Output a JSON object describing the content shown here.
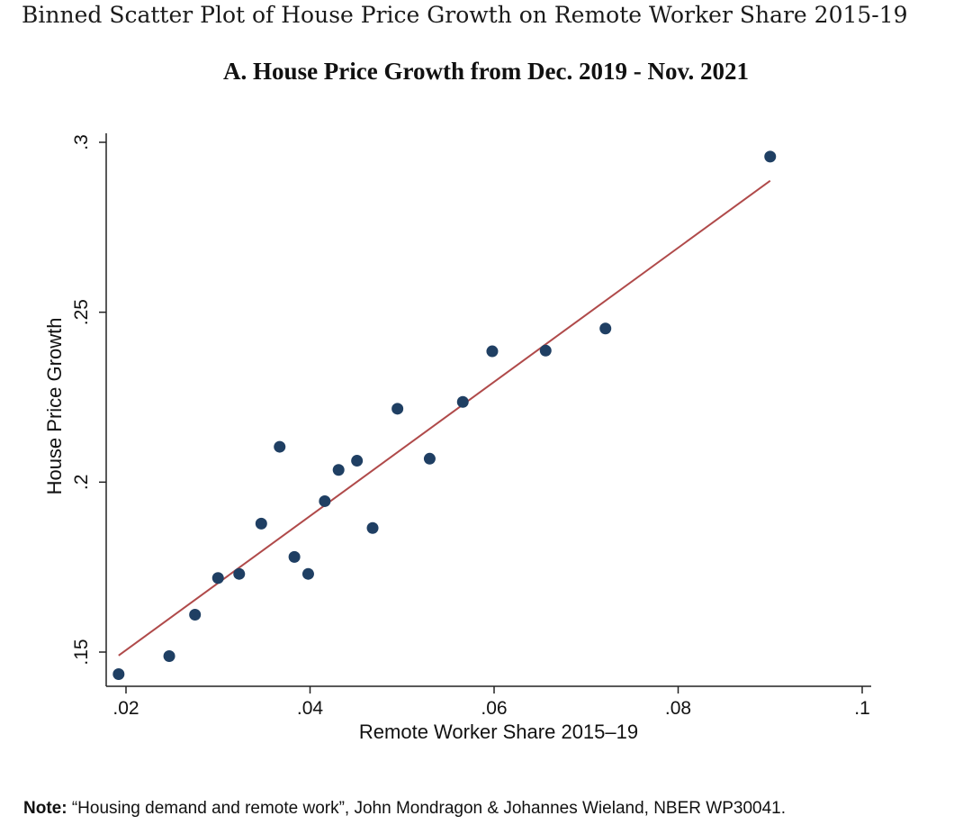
{
  "header": {
    "title": "Binned Scatter Plot of House Price Growth on Remote Worker Share 2015-19",
    "panel_title": "A. House Price Growth from Dec. 2019 - Nov. 2021"
  },
  "note": {
    "label": "Note:",
    "text": " “Housing demand and remote work”, John Mondragon & Johannes Wieland, NBER WP30041."
  },
  "chart_data": {
    "type": "scatter",
    "title": "A. House Price Growth from Dec. 2019 - Nov. 2021",
    "xlabel": "Remote Worker Share 2015–19",
    "ylabel": "House Price Growth",
    "xlim": [
      0.02,
      0.1
    ],
    "ylim": [
      0.14,
      0.3
    ],
    "xticks": [
      {
        "value": 0.02,
        "label": ".02"
      },
      {
        "value": 0.04,
        "label": ".04"
      },
      {
        "value": 0.06,
        "label": ".06"
      },
      {
        "value": 0.08,
        "label": ".08"
      },
      {
        "value": 0.1,
        "label": ".1"
      }
    ],
    "yticks": [
      {
        "value": 0.15,
        "label": ".15"
      },
      {
        "value": 0.2,
        "label": ".2"
      },
      {
        "value": 0.25,
        "label": ".25"
      },
      {
        "value": 0.3,
        "label": ".3"
      }
    ],
    "grid": false,
    "point_color": "#1f3f63",
    "fit_color": "#b04a4a",
    "points": [
      {
        "x": 0.0192,
        "y": 0.1435
      },
      {
        "x": 0.0247,
        "y": 0.1488
      },
      {
        "x": 0.0275,
        "y": 0.161
      },
      {
        "x": 0.03,
        "y": 0.1718
      },
      {
        "x": 0.0323,
        "y": 0.173
      },
      {
        "x": 0.0347,
        "y": 0.1878
      },
      {
        "x": 0.0367,
        "y": 0.2104
      },
      {
        "x": 0.0383,
        "y": 0.178
      },
      {
        "x": 0.0398,
        "y": 0.173
      },
      {
        "x": 0.0416,
        "y": 0.1944
      },
      {
        "x": 0.0431,
        "y": 0.2036
      },
      {
        "x": 0.0451,
        "y": 0.2063
      },
      {
        "x": 0.0468,
        "y": 0.1865
      },
      {
        "x": 0.0495,
        "y": 0.2216
      },
      {
        "x": 0.053,
        "y": 0.2069
      },
      {
        "x": 0.0566,
        "y": 0.2236
      },
      {
        "x": 0.0598,
        "y": 0.2385
      },
      {
        "x": 0.0656,
        "y": 0.2387
      },
      {
        "x": 0.0721,
        "y": 0.2452
      },
      {
        "x": 0.09,
        "y": 0.2958
      }
    ],
    "fit_line": {
      "x": [
        0.0192,
        0.09
      ],
      "y": [
        0.149,
        0.2887
      ]
    }
  }
}
